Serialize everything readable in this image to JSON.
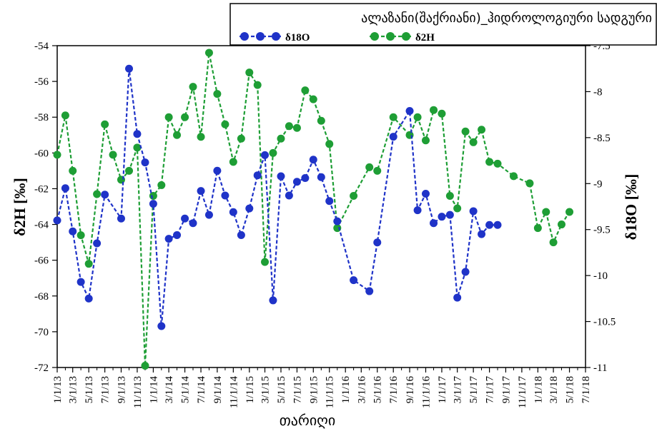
{
  "chart_data": {
    "type": "line",
    "title": "ალაზანი(შაქრიანი)_ჰიდროლოგიური სადგური",
    "xlabel": "თარიღი",
    "ylabel_left": "δ2H [‰]",
    "ylabel_right": "δ18O [‰]",
    "x_tick_labels": [
      "1/1/13",
      "3/1/13",
      "5/1/13",
      "7/1/13",
      "9/1/13",
      "11/1/13",
      "1/1/14",
      "3/1/14",
      "5/1/14",
      "7/1/14",
      "9/1/14",
      "11/1/14",
      "1/1/15",
      "3/1/15",
      "5/1/15",
      "7/1/15",
      "9/1/15",
      "11/1/15",
      "1/1/16",
      "3/1/16",
      "5/1/16",
      "7/1/16",
      "9/1/16",
      "11/1/16",
      "1/1/17",
      "3/1/17",
      "5/1/17",
      "7/1/17",
      "9/1/17",
      "11/1/17",
      "1/1/18",
      "3/1/18",
      "5/1/18",
      "7/1/18"
    ],
    "ylim_left": [
      -72,
      -54
    ],
    "ylim_right": [
      -11,
      -7.5
    ],
    "left_ticks": [
      -54,
      -56,
      -58,
      -60,
      -62,
      -64,
      -66,
      -68,
      -70,
      -72
    ],
    "right_ticks": [
      -7.5,
      -8,
      -8.5,
      -9,
      -9.5,
      -10,
      -10.5,
      -11
    ],
    "legend": {
      "placement": "top-right"
    },
    "series": [
      {
        "name": "δ18O",
        "axis": "right",
        "color": "#1f33c8",
        "x": [
          "2013-01-01",
          "2013-02-01",
          "2013-03-01",
          "2013-04-01",
          "2013-05-01",
          "2013-06-01",
          "2013-07-01",
          "2013-09-01",
          "2013-10-01",
          "2013-11-01",
          "2013-12-01",
          "2014-01-01",
          "2014-02-01",
          "2014-03-01",
          "2014-04-01",
          "2014-05-01",
          "2014-06-01",
          "2014-07-01",
          "2014-08-01",
          "2014-09-01",
          "2014-10-01",
          "2014-11-01",
          "2014-12-01",
          "2015-01-01",
          "2015-02-01",
          "2015-03-01",
          "2015-04-01",
          "2015-05-01",
          "2015-06-01",
          "2015-07-01",
          "2015-08-01",
          "2015-09-01",
          "2015-10-01",
          "2015-11-01",
          "2015-12-01",
          "2016-02-01",
          "2016-04-01",
          "2016-05-01",
          "2016-07-01",
          "2016-09-01",
          "2016-10-01",
          "2016-11-01",
          "2016-12-01",
          "2017-01-01",
          "2017-02-01",
          "2017-03-01",
          "2017-04-01",
          "2017-05-01",
          "2017-06-01",
          "2017-07-01",
          "2017-08-01"
        ],
        "values": [
          -9.4,
          -9.05,
          -9.52,
          -10.07,
          -10.25,
          -9.65,
          -9.12,
          -9.38,
          -7.75,
          -8.46,
          -8.77,
          -9.22,
          -10.55,
          -9.6,
          -9.56,
          -9.38,
          -9.43,
          -9.08,
          -9.34,
          -8.86,
          -9.13,
          -9.31,
          -9.56,
          -9.27,
          -8.91,
          -8.69,
          -10.27,
          -8.92,
          -9.13,
          -8.98,
          -8.94,
          -8.74,
          -8.93,
          -9.19,
          -9.41,
          -10.05,
          -10.17,
          -9.64,
          -8.49,
          -8.21,
          -9.29,
          -9.11,
          -9.43,
          -9.36,
          -9.34,
          -10.24,
          -9.96,
          -9.3,
          -9.55,
          -9.45,
          -9.45
        ]
      },
      {
        "name": "δ2H",
        "axis": "left",
        "color": "#1e9e35",
        "x": [
          "2013-01-01",
          "2013-02-01",
          "2013-03-01",
          "2013-04-01",
          "2013-05-01",
          "2013-06-01",
          "2013-07-01",
          "2013-08-01",
          "2013-09-01",
          "2013-10-01",
          "2013-11-01",
          "2013-12-01",
          "2014-01-01",
          "2014-02-01",
          "2014-03-01",
          "2014-04-01",
          "2014-05-01",
          "2014-06-01",
          "2014-07-01",
          "2014-08-01",
          "2014-09-01",
          "2014-10-01",
          "2014-11-01",
          "2014-12-01",
          "2015-01-01",
          "2015-02-01",
          "2015-03-01",
          "2015-04-01",
          "2015-05-01",
          "2015-06-01",
          "2015-07-01",
          "2015-08-01",
          "2015-09-01",
          "2015-10-01",
          "2015-11-01",
          "2015-12-01",
          "2016-02-01",
          "2016-04-01",
          "2016-05-01",
          "2016-07-01",
          "2016-09-01",
          "2016-10-01",
          "2016-11-01",
          "2016-12-01",
          "2017-01-01",
          "2017-02-01",
          "2017-03-01",
          "2017-04-01",
          "2017-05-01",
          "2017-06-01",
          "2017-07-01",
          "2017-08-01",
          "2017-10-01",
          "2017-12-01",
          "2018-01-01",
          "2018-02-01",
          "2018-03-01",
          "2018-04-01",
          "2018-05-01"
        ],
        "values": [
          -60.1,
          -57.9,
          -61.0,
          -64.6,
          -66.2,
          -62.3,
          -58.4,
          -60.1,
          -61.5,
          -61.0,
          -59.7,
          -71.9,
          -62.4,
          -61.8,
          -58.0,
          -59.0,
          -58.0,
          -56.3,
          -59.1,
          -54.4,
          -56.7,
          -58.4,
          -60.5,
          -59.2,
          -55.5,
          -56.2,
          -66.1,
          -60.0,
          -59.2,
          -58.5,
          -58.6,
          -56.5,
          -57.0,
          -58.2,
          -59.5,
          -64.2,
          -62.4,
          -60.8,
          -61.0,
          -58.0,
          -59.0,
          -58.0,
          -59.3,
          -57.6,
          -57.8,
          -62.4,
          -63.1,
          -58.8,
          -59.4,
          -58.7,
          -60.5,
          -60.6,
          -61.3,
          -61.7,
          -64.2,
          -63.3,
          -65.0,
          -64.0,
          -63.3
        ]
      }
    ]
  }
}
